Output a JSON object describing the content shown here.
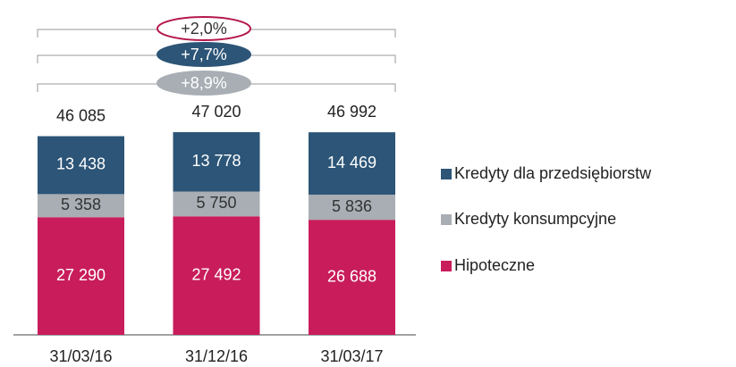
{
  "chart_data": {
    "type": "stacked_bar",
    "categories": [
      "31/03/16",
      "31/12/16",
      "31/03/17"
    ],
    "series": [
      {
        "name": "Hipoteczne",
        "color": "#c81d5a",
        "label_color": "#ffffff",
        "values": [
          27290,
          27492,
          26688
        ],
        "value_labels": [
          "27 290",
          "27 492",
          "26 688"
        ]
      },
      {
        "name": "Kredyty konsumpcyjne",
        "color": "#a8aeb4",
        "label_color": "#333333",
        "values": [
          5358,
          5750,
          5836
        ],
        "value_labels": [
          "5 358",
          "5 750",
          "5 836"
        ]
      },
      {
        "name": "Kredyty dla przedsiębiorstw",
        "color": "#2c5577",
        "label_color": "#ffffff",
        "values": [
          13438,
          13778,
          14469
        ],
        "value_labels": [
          "13 438",
          "13 778",
          "14 469"
        ]
      }
    ],
    "totals": {
      "values": [
        46085,
        47020,
        46992
      ],
      "value_labels": [
        "46 085",
        "47 020",
        "46 992"
      ]
    },
    "annotations": [
      {
        "text": "+2,0%",
        "fill": "#ffffff",
        "stroke": "#b5174f",
        "text_color": "#333333"
      },
      {
        "text": "+7,7%",
        "fill": "#2c5577",
        "stroke": "#2c5577",
        "text_color": "#ffffff"
      },
      {
        "text": "+8,9%",
        "fill": "#a8aeb4",
        "stroke": "#a8aeb4",
        "text_color": "#ffffff"
      }
    ],
    "legend": "right"
  }
}
